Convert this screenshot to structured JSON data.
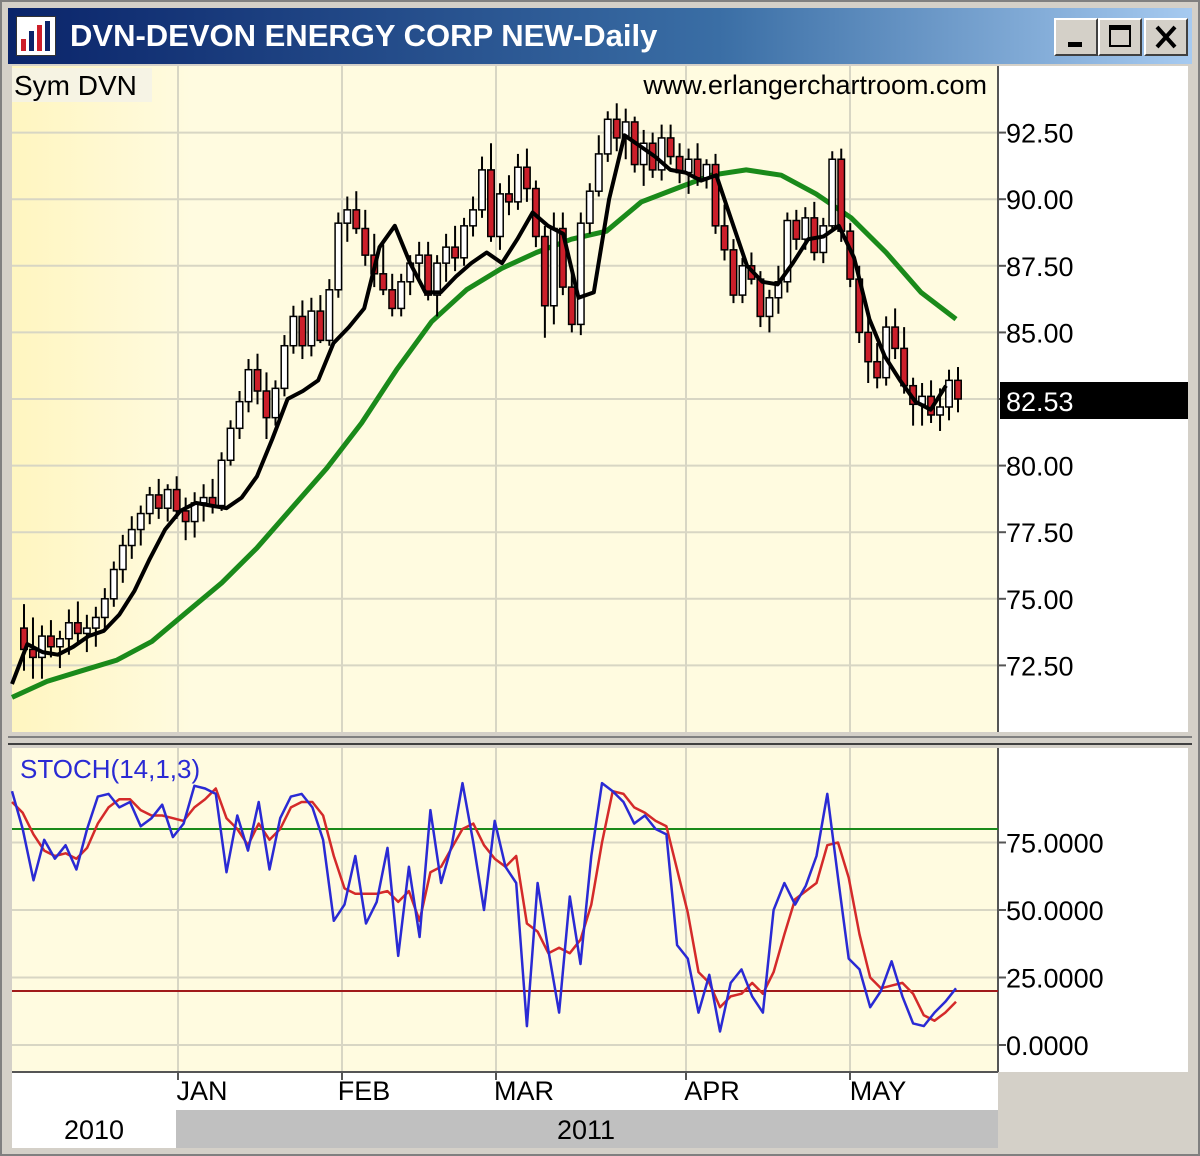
{
  "window": {
    "title": "DVN-DEVON ENERGY CORP NEW-Daily"
  },
  "header": {
    "symbol_label": "Sym DVN",
    "watermark": "www.erlangerchartroom.com"
  },
  "chart_data": [
    {
      "type": "candlestick",
      "title": "DVN-DEVON ENERGY CORP NEW-Daily",
      "ylim": [
        70,
        95
      ],
      "yticks": [
        "72.50",
        "75.00",
        "77.50",
        "80.00",
        "82.50",
        "85.00",
        "87.50",
        "90.00",
        "92.50"
      ],
      "ytick_values": [
        72.5,
        75,
        77.5,
        80,
        82.5,
        85,
        87.5,
        90,
        92.5
      ],
      "last_price": "82.53",
      "last_value": 82.53,
      "x_month_labels": [
        "JAN",
        "FEB",
        "MAR",
        "APR",
        "MAY"
      ],
      "x_year_labels": [
        "2010",
        "2011"
      ],
      "grid": true,
      "colors": {
        "background": "#fffbe0",
        "up_candle": "#ffffff",
        "down_candle": "#cc1f2a",
        "fast_ma": "#000000",
        "slow_ma": "#1a8a1a"
      },
      "candles": [
        [
          73.9,
          74.8,
          72.3,
          73.1
        ],
        [
          73.1,
          74.3,
          72.0,
          72.8
        ],
        [
          72.8,
          74.0,
          72.0,
          73.6
        ],
        [
          73.6,
          74.2,
          72.8,
          73.2
        ],
        [
          73.2,
          73.8,
          72.4,
          73.5
        ],
        [
          73.5,
          74.6,
          72.9,
          74.1
        ],
        [
          74.1,
          74.9,
          73.3,
          73.7
        ],
        [
          73.7,
          74.4,
          73.0,
          73.9
        ],
        [
          73.9,
          74.7,
          73.2,
          74.3
        ],
        [
          74.3,
          75.4,
          73.8,
          75.0
        ],
        [
          75.0,
          76.4,
          74.7,
          76.1
        ],
        [
          76.1,
          77.4,
          75.6,
          77.0
        ],
        [
          77.0,
          78.1,
          76.5,
          77.6
        ],
        [
          77.6,
          78.5,
          77.0,
          78.2
        ],
        [
          78.2,
          79.2,
          77.8,
          78.9
        ],
        [
          78.9,
          79.5,
          78.0,
          78.4
        ],
        [
          78.4,
          79.3,
          77.9,
          79.1
        ],
        [
          79.1,
          79.6,
          78.0,
          78.3
        ],
        [
          78.3,
          78.8,
          77.2,
          77.9
        ],
        [
          77.9,
          79.0,
          77.3,
          78.6
        ],
        [
          78.6,
          79.3,
          77.9,
          78.8
        ],
        [
          78.8,
          79.5,
          78.2,
          78.5
        ],
        [
          78.5,
          80.5,
          78.3,
          80.2
        ],
        [
          80.2,
          81.7,
          80.0,
          81.4
        ],
        [
          81.4,
          82.8,
          81.0,
          82.4
        ],
        [
          82.4,
          84.0,
          82.0,
          83.6
        ],
        [
          83.6,
          84.2,
          82.3,
          82.8
        ],
        [
          82.8,
          83.5,
          81.0,
          81.8
        ],
        [
          81.8,
          83.2,
          81.5,
          82.9
        ],
        [
          82.9,
          84.9,
          82.6,
          84.5
        ],
        [
          84.5,
          86.0,
          84.2,
          85.6
        ],
        [
          85.6,
          86.2,
          84.0,
          84.5
        ],
        [
          84.5,
          86.3,
          84.1,
          85.8
        ],
        [
          85.8,
          86.4,
          84.6,
          84.7
        ],
        [
          84.7,
          87.0,
          84.5,
          86.6
        ],
        [
          86.6,
          89.5,
          86.3,
          89.1
        ],
        [
          89.1,
          90.1,
          88.4,
          89.6
        ],
        [
          89.6,
          90.3,
          88.7,
          88.9
        ],
        [
          88.9,
          89.6,
          87.5,
          87.9
        ],
        [
          87.9,
          88.7,
          86.7,
          87.2
        ],
        [
          87.2,
          88.3,
          86.4,
          86.6
        ],
        [
          86.6,
          87.2,
          85.6,
          85.9
        ],
        [
          85.9,
          87.2,
          85.6,
          86.9
        ],
        [
          86.9,
          87.9,
          86.4,
          87.6
        ],
        [
          87.6,
          88.4,
          86.9,
          87.9
        ],
        [
          87.9,
          88.4,
          86.2,
          86.4
        ],
        [
          86.4,
          87.9,
          85.6,
          87.6
        ],
        [
          87.6,
          88.7,
          86.9,
          88.2
        ],
        [
          88.2,
          89.0,
          87.3,
          87.8
        ],
        [
          87.8,
          89.3,
          87.5,
          89.0
        ],
        [
          89.0,
          90.1,
          88.6,
          89.6
        ],
        [
          89.6,
          91.6,
          89.3,
          91.1
        ],
        [
          91.1,
          92.1,
          88.4,
          88.6
        ],
        [
          88.6,
          90.6,
          88.1,
          90.2
        ],
        [
          90.2,
          90.9,
          89.4,
          89.9
        ],
        [
          89.9,
          91.7,
          89.6,
          91.2
        ],
        [
          91.2,
          91.9,
          89.9,
          90.4
        ],
        [
          90.4,
          90.7,
          88.2,
          88.6
        ],
        [
          88.6,
          89.0,
          84.8,
          86.0
        ],
        [
          86.0,
          89.5,
          85.3,
          88.9
        ],
        [
          88.9,
          89.5,
          86.4,
          86.7
        ],
        [
          86.7,
          87.3,
          85.0,
          85.3
        ],
        [
          85.3,
          89.5,
          84.9,
          89.1
        ],
        [
          89.1,
          90.6,
          88.7,
          90.3
        ],
        [
          90.3,
          92.4,
          90.1,
          91.7
        ],
        [
          91.7,
          93.3,
          91.4,
          93.0
        ],
        [
          93.0,
          93.6,
          91.8,
          92.3
        ],
        [
          92.3,
          93.4,
          91.5,
          92.9
        ],
        [
          92.9,
          93.1,
          91.0,
          91.3
        ],
        [
          91.3,
          92.6,
          90.5,
          92.1
        ],
        [
          92.1,
          92.5,
          90.8,
          91.1
        ],
        [
          91.1,
          92.8,
          90.7,
          92.3
        ],
        [
          92.3,
          92.8,
          91.3,
          91.6
        ],
        [
          91.6,
          92.1,
          90.6,
          91.0
        ],
        [
          91.0,
          91.9,
          90.2,
          91.5
        ],
        [
          91.5,
          92.1,
          90.5,
          90.8
        ],
        [
          90.8,
          91.5,
          90.4,
          91.3
        ],
        [
          91.3,
          91.7,
          88.7,
          89.0
        ],
        [
          89.0,
          89.8,
          87.7,
          88.1
        ],
        [
          88.1,
          88.5,
          86.1,
          86.4
        ],
        [
          86.4,
          87.8,
          86.1,
          87.5
        ],
        [
          87.5,
          88.0,
          86.8,
          87.0
        ],
        [
          87.0,
          87.3,
          85.2,
          85.6
        ],
        [
          85.6,
          86.6,
          85.0,
          86.3
        ],
        [
          86.3,
          87.5,
          85.7,
          86.9
        ],
        [
          86.9,
          89.5,
          86.5,
          89.2
        ],
        [
          89.2,
          89.6,
          88.1,
          88.5
        ],
        [
          88.5,
          89.7,
          88.1,
          89.3
        ],
        [
          89.3,
          89.9,
          87.7,
          88.0
        ],
        [
          88.0,
          89.3,
          87.6,
          89.0
        ],
        [
          89.0,
          91.8,
          88.8,
          91.5
        ],
        [
          91.5,
          91.9,
          88.4,
          88.8
        ],
        [
          88.8,
          89.1,
          86.7,
          87.0
        ],
        [
          87.0,
          87.5,
          84.6,
          85.0
        ],
        [
          85.0,
          85.7,
          83.1,
          83.9
        ],
        [
          83.9,
          84.6,
          82.9,
          83.3
        ],
        [
          83.3,
          85.6,
          83.0,
          85.2
        ],
        [
          85.2,
          85.9,
          84.0,
          84.4
        ],
        [
          84.4,
          85.2,
          82.7,
          83.0
        ],
        [
          83.0,
          83.3,
          81.5,
          82.3
        ],
        [
          82.3,
          83.1,
          81.5,
          82.6
        ],
        [
          82.6,
          83.2,
          81.6,
          81.9
        ],
        [
          81.9,
          82.9,
          81.3,
          82.2
        ],
        [
          82.2,
          83.6,
          81.7,
          83.2
        ],
        [
          83.2,
          83.7,
          82.0,
          82.5
        ]
      ],
      "slow_ma": [
        71.3,
        71.9,
        72.3,
        72.7,
        73.4,
        74.5,
        75.6,
        76.9,
        78.4,
        79.9,
        81.6,
        83.6,
        85.4,
        86.6,
        87.4,
        88.0,
        88.5,
        88.8,
        89.9,
        90.4,
        90.9,
        91.1,
        90.9,
        90.2,
        89.3,
        88.0,
        86.5,
        85.5
      ],
      "fast_ma": [
        71.8,
        73.3,
        73.0,
        72.9,
        73.2,
        73.6,
        73.8,
        74.4,
        75.3,
        76.5,
        77.6,
        78.3,
        78.6,
        78.5,
        78.4,
        78.8,
        79.6,
        81.0,
        82.5,
        82.8,
        83.2,
        84.6,
        85.2,
        85.9,
        88.2,
        89.0,
        87.6,
        86.5,
        86.5,
        87.1,
        87.6,
        88.0,
        87.6,
        88.5,
        89.5,
        89.0,
        88.7,
        86.3,
        86.5,
        90.0,
        92.4,
        92.0,
        91.6,
        91.1,
        91.0,
        90.7,
        90.9,
        89.2,
        87.5,
        86.9,
        86.8,
        87.6,
        88.5,
        88.6,
        89.0,
        87.8,
        85.5,
        84.1,
        83.2,
        82.4,
        82.1,
        83.0
      ]
    },
    {
      "type": "line",
      "title": "STOCH(14,1,3)",
      "ylim": [
        -10,
        110
      ],
      "yticks": [
        "75.0000",
        "50.0000",
        "25.0000",
        "0.0000"
      ],
      "ytick_values": [
        75,
        50,
        25,
        0
      ],
      "upper_level": 80,
      "lower_level": 20,
      "colors": {
        "k": "#2a2ad4",
        "d": "#d42a2a",
        "upper": "#1a8a1a",
        "lower": "#a01a1a"
      },
      "k_line": [
        94,
        80,
        61,
        76,
        69,
        74,
        65,
        80,
        92,
        93,
        88,
        90,
        81,
        84,
        89,
        77,
        82,
        96,
        95,
        93,
        64,
        85,
        72,
        90,
        65,
        84,
        92,
        93,
        88,
        76,
        46,
        52,
        70,
        45,
        53,
        73,
        33,
        66,
        40,
        87,
        60,
        74,
        97,
        75,
        50,
        83,
        66,
        60,
        7,
        60,
        35,
        12,
        55,
        30,
        70,
        97,
        94,
        90,
        82,
        85,
        80,
        78,
        37,
        32,
        12,
        26,
        5,
        23,
        28,
        18,
        12,
        50,
        60,
        52,
        59,
        70,
        93,
        62,
        32,
        28,
        14,
        20,
        31,
        18,
        8,
        7,
        12,
        16,
        21
      ],
      "d_line": [
        90,
        86,
        78,
        72,
        70,
        71,
        69,
        73,
        82,
        88,
        91,
        91,
        87,
        85,
        85,
        84,
        83,
        88,
        91,
        95,
        84,
        80,
        74,
        82,
        76,
        80,
        88,
        90,
        90,
        85,
        70,
        58,
        56,
        56,
        56,
        57,
        53,
        57,
        46,
        64,
        66,
        73,
        80,
        82,
        74,
        69,
        66,
        70,
        45,
        42,
        34,
        36,
        34,
        39,
        52,
        75,
        94,
        93,
        88,
        86,
        83,
        81,
        65,
        49,
        27,
        23,
        14,
        18,
        19,
        23,
        19,
        27,
        41,
        54,
        57,
        60,
        74,
        75,
        62,
        41,
        25,
        21,
        22,
        23,
        19,
        11,
        9,
        12,
        16
      ]
    }
  ]
}
